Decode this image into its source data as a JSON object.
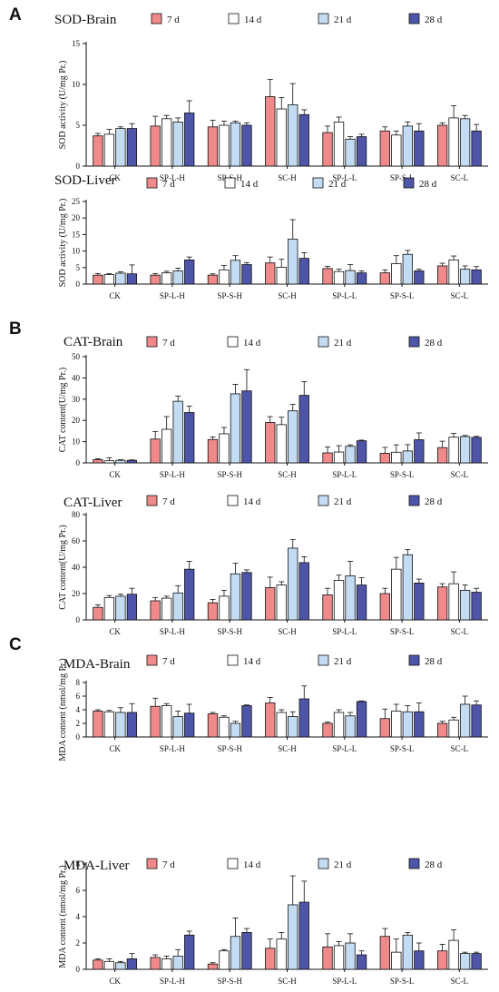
{
  "figure": {
    "panel_letters": [
      "A",
      "B",
      "C"
    ]
  },
  "colors": {
    "7 d": "#f08a8a",
    "14 d": "#ffffff",
    "21 d": "#c3dcf3",
    "28 d": "#4e55a8",
    "axis": "#111111"
  },
  "chart_data": [
    {
      "type": "bar",
      "title": "SOD-Brain",
      "ylabel": "SOD activity (U/mg Pr.)",
      "xlabel": "",
      "ylim": [
        0,
        15
      ],
      "yticks": [
        0,
        5,
        10,
        15
      ],
      "categories": [
        "CK",
        "SP-L-H",
        "SP-S-H",
        "SC-H",
        "SP-L-L",
        "SP-S-L",
        "SC-L"
      ],
      "series": [
        {
          "name": "7 d",
          "values": [
            3.7,
            4.9,
            4.8,
            8.5,
            4.1,
            4.3,
            5.0
          ],
          "errors": [
            0.3,
            1.2,
            0.8,
            2.1,
            0.8,
            0.5,
            0.3
          ]
        },
        {
          "name": "14 d",
          "values": [
            3.9,
            5.8,
            5.0,
            7.0,
            5.4,
            3.8,
            5.9
          ],
          "errors": [
            0.6,
            0.4,
            0.5,
            1.4,
            0.6,
            0.5,
            1.5
          ]
        },
        {
          "name": "21 d",
          "values": [
            4.6,
            5.4,
            5.3,
            7.5,
            3.3,
            4.9,
            5.8
          ],
          "errors": [
            0.2,
            0.5,
            0.2,
            2.6,
            0.3,
            0.5,
            0.4
          ]
        },
        {
          "name": "28 d",
          "values": [
            4.6,
            6.5,
            5.0,
            6.3,
            3.6,
            4.3,
            4.3
          ],
          "errors": [
            0.6,
            1.5,
            0.3,
            0.6,
            0.3,
            0.9,
            0.8
          ]
        }
      ]
    },
    {
      "type": "bar",
      "title": "SOD-Liver",
      "ylabel": "SOD activity (U/mg Pr.)",
      "xlabel": "",
      "ylim": [
        0,
        25
      ],
      "yticks": [
        0,
        5,
        10,
        15,
        20,
        25
      ],
      "categories": [
        "CK",
        "SP-L-H",
        "SP-S-H",
        "SC-H",
        "SP-L-L",
        "SP-S-L",
        "SC-L"
      ],
      "series": [
        {
          "name": "7 d",
          "values": [
            2.7,
            2.7,
            2.7,
            6.4,
            4.7,
            3.4,
            5.5
          ],
          "errors": [
            0.5,
            0.5,
            0.4,
            1.8,
            0.7,
            0.9,
            0.8
          ]
        },
        {
          "name": "14 d",
          "values": [
            2.9,
            3.4,
            4.3,
            5.1,
            3.8,
            6.2,
            7.3
          ],
          "errors": [
            0.3,
            0.5,
            1.3,
            2.4,
            0.7,
            2.4,
            1.2
          ]
        },
        {
          "name": "21 d",
          "values": [
            3.3,
            4.0,
            7.2,
            13.6,
            4.1,
            9.0,
            4.5
          ],
          "errors": [
            0.4,
            0.8,
            1.4,
            5.9,
            1.8,
            1.2,
            1.0
          ]
        },
        {
          "name": "28 d",
          "values": [
            3.1,
            7.3,
            5.9,
            7.8,
            3.4,
            4.0,
            4.3
          ],
          "errors": [
            2.7,
            0.9,
            0.6,
            1.7,
            0.6,
            0.5,
            1.0
          ]
        }
      ]
    },
    {
      "type": "bar",
      "title": "CAT-Brain",
      "ylabel": "CAT content(U/mg Pr.)",
      "xlabel": "",
      "ylim": [
        0,
        50
      ],
      "yticks": [
        0,
        10,
        20,
        30,
        40,
        50
      ],
      "categories": [
        "CK",
        "SP-L-H",
        "SP-S-H",
        "SC-H",
        "SP-L-L",
        "SP-S-L",
        "SC-L"
      ],
      "series": [
        {
          "name": "7 d",
          "values": [
            1.5,
            11.2,
            11.0,
            19.0,
            4.7,
            4.5,
            7.2
          ],
          "errors": [
            0.4,
            3.5,
            1.2,
            2.8,
            2.8,
            2.8,
            3.0
          ]
        },
        {
          "name": "14 d",
          "values": [
            1.0,
            15.8,
            13.7,
            18.0,
            5.1,
            5.0,
            12.1
          ],
          "errors": [
            1.4,
            6.0,
            3.0,
            3.5,
            3.0,
            3.5,
            1.8
          ]
        },
        {
          "name": "21 d",
          "values": [
            1.2,
            29.0,
            32.5,
            24.5,
            7.8,
            5.6,
            12.4
          ],
          "errors": [
            0.3,
            2.5,
            4.5,
            3.0,
            0.7,
            3.0,
            0.5
          ]
        },
        {
          "name": "28 d",
          "values": [
            1.2,
            23.7,
            33.9,
            31.8,
            10.4,
            10.9,
            12.0
          ],
          "errors": [
            0.2,
            3.0,
            10.0,
            6.5,
            0.3,
            3.2,
            0.5
          ]
        }
      ]
    },
    {
      "type": "bar",
      "title": "CAT-Liver",
      "ylabel": "CAT content(U/mg Pr.)",
      "xlabel": "",
      "ylim": [
        0,
        80
      ],
      "yticks": [
        0,
        20,
        40,
        60,
        80
      ],
      "categories": [
        "CK",
        "SP-L-H",
        "SP-S-H",
        "SC-H",
        "SP-L-L",
        "SP-S-L",
        "SC-L"
      ],
      "series": [
        {
          "name": "7 d",
          "values": [
            9.5,
            14.5,
            13.0,
            24.5,
            19.0,
            20.0,
            25.0
          ],
          "errors": [
            2.0,
            2.5,
            2.5,
            8.0,
            5.0,
            4.0,
            2.5
          ]
        },
        {
          "name": "14 d",
          "values": [
            17.0,
            16.5,
            18.0,
            26.5,
            30.0,
            38.5,
            27.5
          ],
          "errors": [
            1.5,
            1.5,
            4.5,
            2.5,
            4.0,
            9.0,
            9.0
          ]
        },
        {
          "name": "21 d",
          "values": [
            18.0,
            20.5,
            35.0,
            54.5,
            33.5,
            49.5,
            22.5
          ],
          "errors": [
            1.5,
            5.5,
            8.0,
            6.5,
            11.0,
            4.0,
            4.0
          ]
        },
        {
          "name": "28 d",
          "values": [
            19.5,
            38.5,
            36.0,
            43.5,
            26.5,
            28.0,
            21.0
          ],
          "errors": [
            4.5,
            6.0,
            2.0,
            4.5,
            5.5,
            3.0,
            3.0
          ]
        }
      ]
    },
    {
      "type": "bar",
      "title": "MDA-Brain",
      "ylabel": "MDA content (nmol/mg Pr.)",
      "xlabel": "",
      "ylim": [
        0,
        8
      ],
      "yticks": [
        0,
        2,
        4,
        6,
        8
      ],
      "categories": [
        "CK",
        "SP-L-H",
        "SP-S-H",
        "SC-H",
        "SP-L-L",
        "SP-S-L",
        "SC-L"
      ],
      "series": [
        {
          "name": "7 d",
          "values": [
            3.8,
            4.5,
            3.4,
            5.0,
            2.0,
            2.7,
            2.0
          ],
          "errors": [
            0.2,
            1.2,
            0.2,
            0.8,
            0.2,
            1.4,
            0.3
          ]
        },
        {
          "name": "14 d",
          "values": [
            3.7,
            4.6,
            2.9,
            3.6,
            3.6,
            3.8,
            2.5
          ],
          "errors": [
            0.2,
            0.3,
            0.2,
            0.4,
            0.4,
            1.0,
            0.4
          ]
        },
        {
          "name": "21 d",
          "values": [
            3.6,
            3.0,
            2.0,
            3.0,
            3.1,
            3.7,
            4.8
          ],
          "errors": [
            0.7,
            0.8,
            0.3,
            0.7,
            0.5,
            0.9,
            1.2
          ]
        },
        {
          "name": "28 d",
          "values": [
            3.6,
            3.5,
            4.6,
            5.6,
            5.2,
            3.7,
            4.7
          ],
          "errors": [
            1.3,
            1.3,
            0.1,
            1.9,
            0.1,
            1.3,
            0.6
          ]
        }
      ]
    },
    {
      "type": "bar",
      "title": "MDA-Liver",
      "ylabel": "MDA content (nmol/mg Pr.)",
      "xlabel": "",
      "ylim": [
        0,
        8
      ],
      "yticks": [
        0,
        2,
        4,
        6,
        8
      ],
      "categories": [
        "CK",
        "SP-L-H",
        "SP-S-H",
        "SC-H",
        "SP-L-L",
        "SP-S-L",
        "SC-L"
      ],
      "series": [
        {
          "name": "7 d",
          "values": [
            0.7,
            0.9,
            0.4,
            1.6,
            1.7,
            2.5,
            1.4
          ],
          "errors": [
            0.1,
            0.2,
            0.1,
            0.7,
            1.0,
            0.6,
            0.5
          ]
        },
        {
          "name": "14 d",
          "values": [
            0.6,
            0.8,
            1.4,
            2.3,
            1.8,
            1.3,
            2.2
          ],
          "errors": [
            0.2,
            0.2,
            0.1,
            0.5,
            0.3,
            1.0,
            0.8
          ]
        },
        {
          "name": "21 d",
          "values": [
            0.5,
            1.0,
            2.5,
            4.9,
            2.0,
            2.6,
            1.2
          ],
          "errors": [
            0.1,
            0.5,
            1.4,
            2.2,
            0.7,
            0.2,
            0.1
          ]
        },
        {
          "name": "28 d",
          "values": [
            0.8,
            2.6,
            2.8,
            5.1,
            1.1,
            1.4,
            1.2
          ],
          "errors": [
            0.4,
            0.3,
            0.3,
            1.6,
            0.3,
            0.6,
            0.1
          ]
        }
      ]
    }
  ]
}
